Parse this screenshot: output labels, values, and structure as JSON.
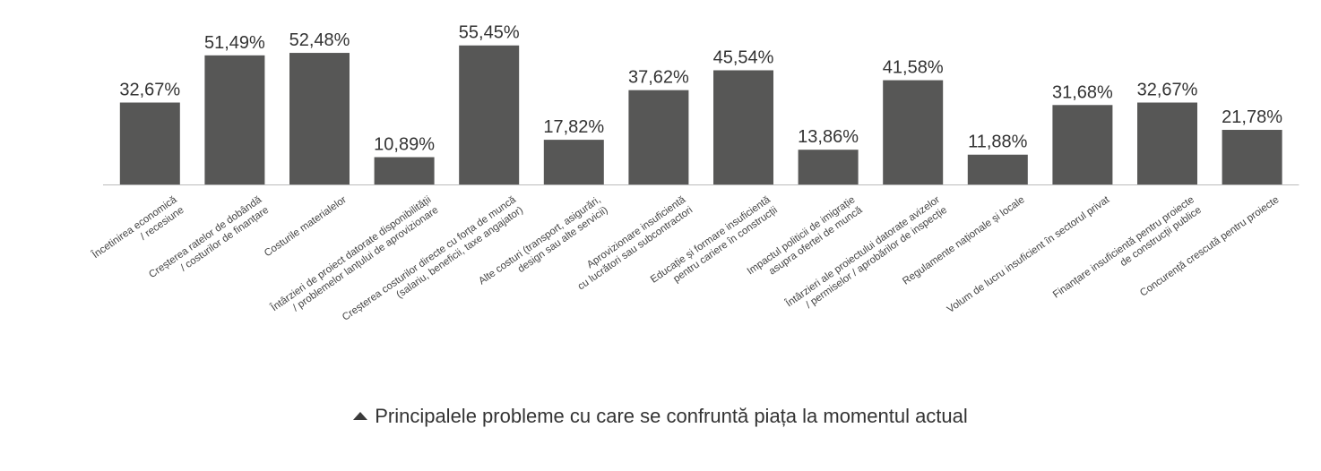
{
  "chart_data": {
    "type": "bar",
    "categories": [
      [
        "Încetinirea economică",
        "/ recesiune"
      ],
      [
        "Creșterea ratelor de dobândă",
        "/ costurilor de finanțare"
      ],
      [
        "Costurile materialelor"
      ],
      [
        "Întârzieri de proiect datorate disponibilității",
        "/ problemelor lanțului de aprovizionare"
      ],
      [
        "Creșterea costurilor directe cu forța de muncă",
        "(salariu, beneficii, taxe angajator)"
      ],
      [
        "Alte costuri (transport, asigurări,",
        "design sau alte servicii)"
      ],
      [
        "Aprovizionare insuficientă",
        "cu lucrători sau subcontractori"
      ],
      [
        "Educație și formare insuficientă",
        "pentru cariere în construcții"
      ],
      [
        "Impactul politicii de imigrație",
        "asupra ofertei de muncă"
      ],
      [
        "Întârzieri ale proiectului datorate avizelor",
        "/ permiselor / aprobărilor de inspecție"
      ],
      [
        "Regulamente naționale și locale"
      ],
      [
        "Volum de lucru insuficient în sectorul privat"
      ],
      [
        "Finanțare insuficientă pentru proiecte",
        "de construcții publice"
      ],
      [
        "Concurență crescută pentru proiecte"
      ]
    ],
    "values": [
      32.67,
      51.49,
      52.48,
      10.89,
      55.45,
      17.82,
      37.62,
      45.54,
      13.86,
      41.58,
      11.88,
      31.68,
      32.67,
      21.78
    ],
    "value_labels": [
      "32,67%",
      "51,49%",
      "52,48%",
      "10,89%",
      "55,45%",
      "17,82%",
      "37,62%",
      "45,54%",
      "13,86%",
      "41,58%",
      "11,88%",
      "31,68%",
      "32,67%",
      "21,78%"
    ],
    "ylim": [
      0,
      60
    ],
    "grid": false,
    "bar_color": "#575756",
    "baseline_color": "#bbbbbb"
  },
  "caption": {
    "icon": "triangle-up-icon",
    "text": "Principalele probleme cu care se confruntă piața la momentul actual"
  }
}
